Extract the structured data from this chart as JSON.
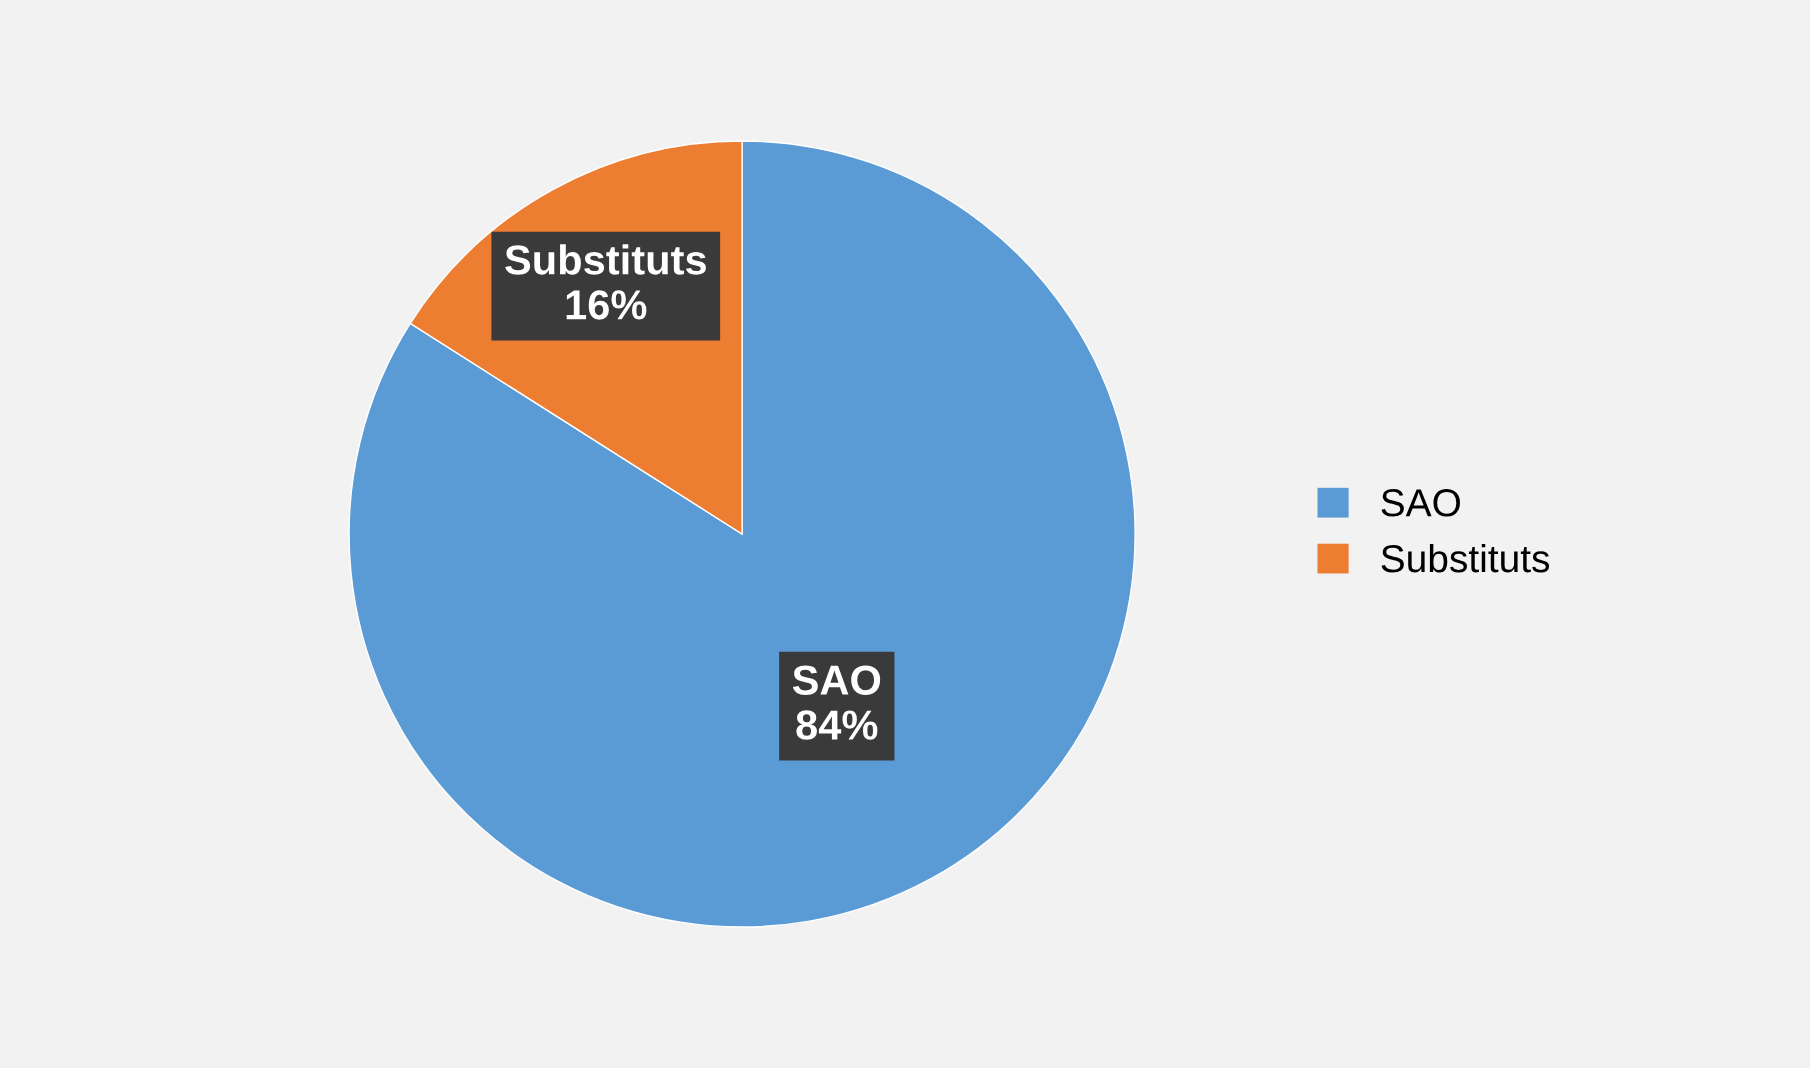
{
  "chart_data": {
    "type": "pie",
    "categories": [
      "SAO",
      "Substituts"
    ],
    "values": [
      84,
      16
    ],
    "colors": [
      "#5b9bd5",
      "#ed7d31"
    ],
    "value_labels": [
      "84%",
      "16%"
    ],
    "legend": "right"
  }
}
